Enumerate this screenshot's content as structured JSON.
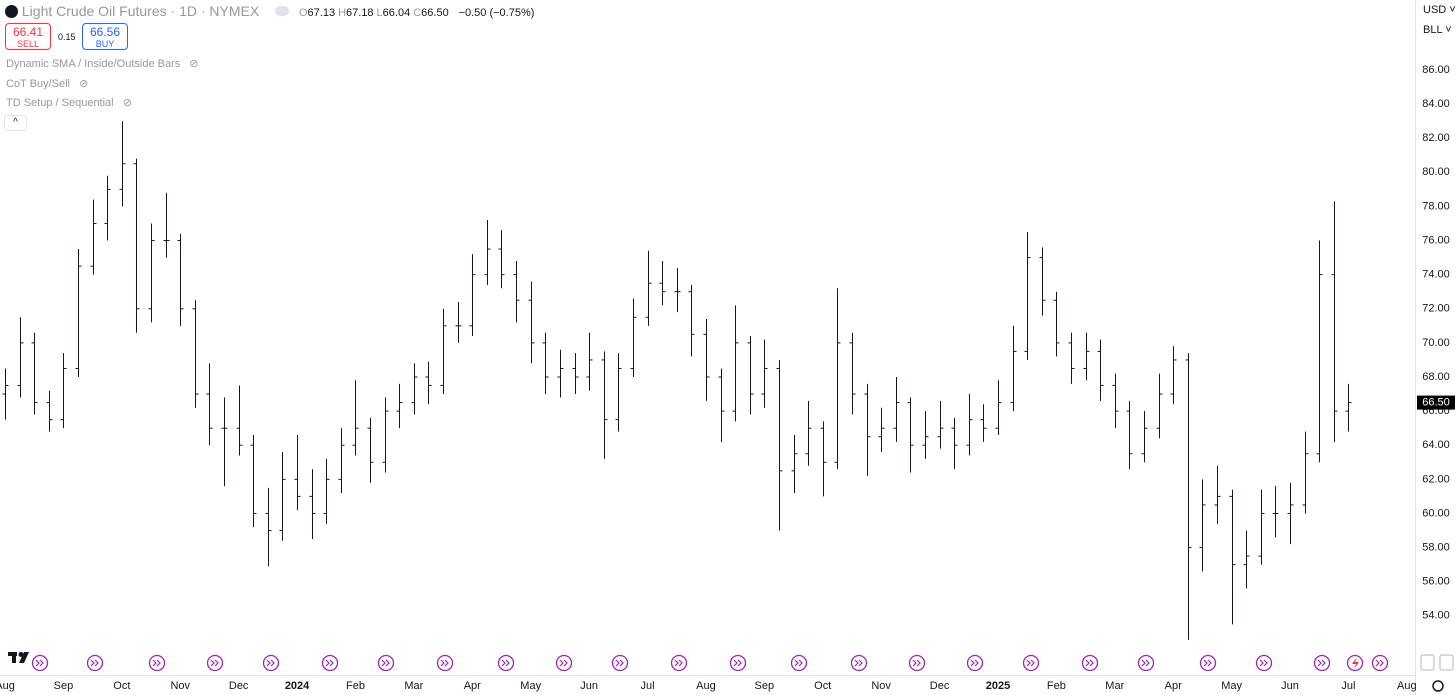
{
  "header": {
    "title": "Light Crude Oil Futures · 1D · NYMEX",
    "ohlc": [
      {
        "key": "O",
        "text": "67.13"
      },
      {
        "key": "H",
        "text": "67.18"
      },
      {
        "key": "L",
        "text": "66.04"
      },
      {
        "key": "C",
        "text": "66.50"
      }
    ],
    "change": "−0.50 (−0.75%)",
    "sell_price": "66.41",
    "sell_label": "SELL",
    "spread": "0.15",
    "buy_price": "66.56",
    "buy_label": "BUY",
    "indicators": [
      "Dynamic SMA / Inside/Outside Bars",
      "CoT Buy/Sell",
      "TD Setup / Sequential"
    ],
    "currency": "USD",
    "unit": "BLL"
  },
  "chart_data": {
    "type": "ohlc",
    "color": "#131722",
    "x": [
      0,
      0.25,
      0.5,
      0.75,
      1,
      1.25,
      1.5,
      1.75,
      2,
      2.25,
      2.5,
      2.75,
      3,
      3.25,
      3.5,
      3.75,
      4,
      4.25,
      4.5,
      4.75,
      5,
      5.25,
      5.5,
      5.75,
      6,
      6.25,
      6.5,
      6.75,
      7,
      7.25,
      7.5,
      7.75,
      8,
      8.25,
      8.5,
      8.75,
      9,
      9.25,
      9.5,
      9.75,
      10,
      10.25,
      10.5,
      10.75,
      11,
      11.25,
      11.5,
      11.75,
      12,
      12.25,
      12.5,
      12.75,
      13,
      13.25,
      13.5,
      13.75,
      14,
      14.25,
      14.5,
      14.75,
      15,
      15.25,
      15.5,
      15.75,
      16,
      16.25,
      16.5,
      16.75,
      17,
      17.25,
      17.5,
      17.75,
      18,
      18.25,
      18.5,
      18.75,
      19,
      19.25,
      19.5,
      19.75,
      20,
      20.25,
      20.5,
      20.75,
      21,
      21.25,
      21.5,
      21.75,
      22,
      22.25,
      22.5,
      22.75,
      23
    ],
    "open": [
      67,
      67.5,
      70,
      66.5,
      65.5,
      68.5,
      74.5,
      77,
      79,
      80.5,
      72,
      76,
      76,
      72,
      67,
      65,
      65,
      64,
      60,
      59,
      62,
      61,
      60,
      62,
      64,
      65,
      63,
      66,
      66.5,
      68,
      67.5,
      71,
      71,
      74,
      75.5,
      74,
      72.5,
      70,
      68,
      68.5,
      68,
      69,
      65.5,
      68.5,
      71.5,
      73.5,
      73,
      73,
      70.5,
      68,
      66,
      70,
      67,
      68.5,
      62.5,
      63.5,
      65,
      63,
      70,
      67,
      64.5,
      65,
      66.5,
      64,
      64.5,
      65,
      64,
      65.5,
      65,
      66.5,
      69.5,
      75,
      72.5,
      70,
      68.5,
      69.5,
      67.5,
      66,
      63.5,
      65,
      67,
      69,
      58,
      60.5,
      61,
      57,
      57.5,
      60,
      60,
      60.5,
      63.5,
      74,
      66
    ],
    "high": [
      68.5,
      71.5,
      70.6,
      67.2,
      69.4,
      75.5,
      78.4,
      79.8,
      83,
      80.8,
      77,
      78.8,
      76.4,
      72.5,
      68.8,
      66.8,
      67.5,
      64.6,
      61.5,
      63.6,
      64.6,
      62.6,
      63.2,
      65,
      67.8,
      65.6,
      66.8,
      67.6,
      68.8,
      68.9,
      72,
      72.4,
      75.2,
      77.2,
      76.6,
      74.8,
      73.6,
      70.6,
      69.6,
      69.4,
      70.6,
      69.5,
      69.4,
      72.6,
      75.4,
      74.8,
      74.4,
      73.4,
      71.4,
      68.5,
      72.2,
      70.4,
      70.2,
      69,
      64.6,
      66.6,
      65.4,
      73.2,
      70.6,
      67.6,
      66.2,
      68,
      66.8,
      66,
      66.6,
      65.6,
      67,
      66.4,
      67.8,
      71,
      76.5,
      75.6,
      73,
      70.6,
      70.6,
      70.2,
      68.2,
      66.6,
      66,
      68.2,
      69.8,
      69.4,
      62,
      62.8,
      61.4,
      59,
      61.4,
      61.6,
      61.8,
      64.8,
      76,
      78.3,
      67.6
    ],
    "low": [
      65.5,
      66.8,
      65.8,
      64.8,
      65,
      68,
      74,
      76,
      78,
      70.6,
      71.2,
      75,
      71,
      66.2,
      64,
      61.6,
      63.4,
      59.2,
      56.9,
      58.4,
      60.2,
      58.5,
      59.4,
      61.2,
      63.4,
      61.8,
      62.4,
      65,
      65.8,
      66.4,
      67,
      70,
      70.4,
      73.4,
      73.2,
      71.2,
      68.8,
      67,
      66.8,
      67,
      67.2,
      63.2,
      64.8,
      68,
      71,
      72.2,
      71.8,
      69.2,
      66.6,
      64.2,
      65.4,
      65.8,
      66.2,
      59,
      61.2,
      62.8,
      61,
      62.6,
      65.8,
      62.2,
      63.6,
      64.2,
      62.4,
      63.2,
      63.8,
      62.6,
      63.4,
      64.2,
      64.6,
      66,
      69,
      71.6,
      69.2,
      67.6,
      67.8,
      66.6,
      65,
      62.6,
      63,
      64.4,
      66.4,
      52.6,
      56.6,
      59.4,
      53.5,
      55.6,
      57,
      58.6,
      58.2,
      60,
      63,
      64.2,
      64.8
    ],
    "close": [
      67.5,
      70,
      66.5,
      65.5,
      68.5,
      74.5,
      77,
      79,
      80.5,
      72,
      76,
      76,
      72,
      67,
      65,
      65,
      64,
      60,
      59,
      62,
      61,
      60,
      62,
      64,
      65,
      63,
      66,
      66.5,
      68,
      67.5,
      71,
      71,
      74,
      75.5,
      74,
      72.5,
      70,
      68,
      68.5,
      68,
      69,
      65.5,
      68.5,
      71.5,
      73.5,
      73,
      73,
      70.5,
      68,
      66,
      70,
      67,
      68.5,
      62.5,
      63.5,
      65,
      63,
      70,
      67,
      64.5,
      65,
      66.5,
      64,
      64.5,
      65,
      64,
      65.5,
      65,
      66.5,
      69.5,
      75,
      72.5,
      70,
      68.5,
      69.5,
      67.5,
      66,
      63.5,
      65,
      67,
      69,
      58,
      60.5,
      61,
      57,
      57.5,
      60,
      60,
      60.5,
      63.5,
      74,
      66,
      66.5
    ],
    "last_price": {
      "value": 66.5,
      "label": "66.50"
    },
    "xlim": [
      -0.086,
      24.14
    ],
    "xticks": [
      {
        "value": 0,
        "label": "Aug"
      },
      {
        "value": 1,
        "label": "Sep"
      },
      {
        "value": 2,
        "label": "Oct"
      },
      {
        "value": 3,
        "label": "Nov"
      },
      {
        "value": 4,
        "label": "Dec"
      },
      {
        "value": 5,
        "label": "2024"
      },
      {
        "value": 6,
        "label": "Feb"
      },
      {
        "value": 7,
        "label": "Mar"
      },
      {
        "value": 8,
        "label": "Apr"
      },
      {
        "value": 9,
        "label": "May"
      },
      {
        "value": 10,
        "label": "Jun"
      },
      {
        "value": 11,
        "label": "Jul"
      },
      {
        "value": 12,
        "label": "Aug"
      },
      {
        "value": 13,
        "label": "Sep"
      },
      {
        "value": 14,
        "label": "Oct"
      },
      {
        "value": 15,
        "label": "Nov"
      },
      {
        "value": 16,
        "label": "Dec"
      },
      {
        "value": 17,
        "label": "2025"
      },
      {
        "value": 18,
        "label": "Feb"
      },
      {
        "value": 19,
        "label": "Mar"
      },
      {
        "value": 20,
        "label": "Apr"
      },
      {
        "value": 21,
        "label": "May"
      },
      {
        "value": 22,
        "label": "Jun"
      },
      {
        "value": 23,
        "label": "Jul"
      },
      {
        "value": 24,
        "label": "Aug"
      }
    ],
    "ylim": [
      51.41,
      90.1
    ],
    "yticks": [
      {
        "value": 54,
        "label": "54.00"
      },
      {
        "value": 56,
        "label": "56.00"
      },
      {
        "value": 58,
        "label": "58.00"
      },
      {
        "value": 60,
        "label": "60.00"
      },
      {
        "value": 62,
        "label": "62.00"
      },
      {
        "value": 64,
        "label": "64.00"
      },
      {
        "value": 66,
        "label": "66.00"
      },
      {
        "value": 68,
        "label": "68.00"
      },
      {
        "value": 70,
        "label": "70.00"
      },
      {
        "value": 72,
        "label": "72.00"
      },
      {
        "value": 74,
        "label": "74.00"
      },
      {
        "value": 76,
        "label": "76.00"
      },
      {
        "value": 78,
        "label": "78.00"
      },
      {
        "value": 80,
        "label": "80.00"
      },
      {
        "value": 82,
        "label": "82.00"
      },
      {
        "value": 84,
        "label": "84.00"
      },
      {
        "value": 86,
        "label": "86.00"
      }
    ],
    "grid": false
  }
}
